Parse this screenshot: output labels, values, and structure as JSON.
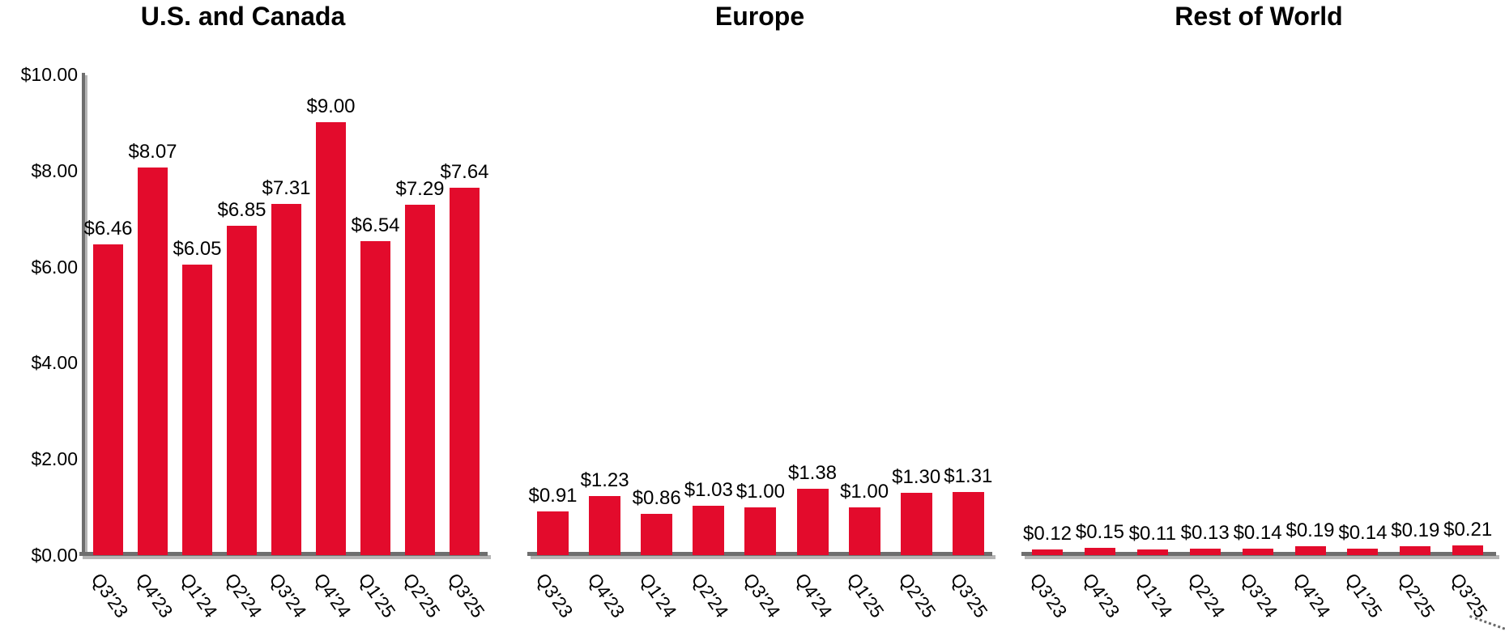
{
  "chart_data": [
    {
      "type": "bar",
      "title": "U.S. and Canada",
      "categories": [
        "Q3'23",
        "Q4'23",
        "Q1'24",
        "Q2'24",
        "Q3'24",
        "Q4'24",
        "Q1'25",
        "Q2'25",
        "Q3'25"
      ],
      "values": [
        6.46,
        8.07,
        6.05,
        6.85,
        7.31,
        9.0,
        6.54,
        7.29,
        7.64
      ],
      "data_labels": [
        "$6.46",
        "$8.07",
        "$6.05",
        "$6.85",
        "$7.31",
        "$9.00",
        "$6.54",
        "$7.29",
        "$7.64"
      ],
      "ylim": [
        0,
        10
      ],
      "y_axis_visible": true,
      "grid": false,
      "legend": "none"
    },
    {
      "type": "bar",
      "title": "Europe",
      "categories": [
        "Q3'23",
        "Q4'23",
        "Q1'24",
        "Q2'24",
        "Q3'24",
        "Q4'24",
        "Q1'25",
        "Q2'25",
        "Q3'25"
      ],
      "values": [
        0.91,
        1.23,
        0.86,
        1.03,
        1.0,
        1.38,
        1.0,
        1.3,
        1.31
      ],
      "data_labels": [
        "$0.91",
        "$1.23",
        "$0.86",
        "$1.03",
        "$1.00",
        "$1.38",
        "$1.00",
        "$1.30",
        "$1.31"
      ],
      "ylim": [
        0,
        10
      ],
      "y_axis_visible": false,
      "grid": false,
      "legend": "none"
    },
    {
      "type": "bar",
      "title": "Rest of World",
      "categories": [
        "Q3'23",
        "Q4'23",
        "Q1'24",
        "Q2'24",
        "Q3'24",
        "Q4'24",
        "Q1'25",
        "Q2'25",
        "Q3'25"
      ],
      "values": [
        0.12,
        0.15,
        0.11,
        0.13,
        0.14,
        0.19,
        0.14,
        0.19,
        0.21
      ],
      "data_labels": [
        "$0.12",
        "$0.15",
        "$0.11",
        "$0.13",
        "$0.14",
        "$0.19",
        "$0.14",
        "$0.19",
        "$0.21"
      ],
      "ylim": [
        0,
        10
      ],
      "y_axis_visible": false,
      "grid": false,
      "legend": "none"
    }
  ],
  "y_axis": {
    "tick_labels": [
      "$10.00",
      "$8.00",
      "$6.00",
      "$4.00",
      "$2.00",
      "$0.00"
    ],
    "tick_values": [
      10,
      8,
      6,
      4,
      2,
      0
    ]
  },
  "colors": {
    "bar": "#e30b2c",
    "axis_line": "#6e6e6e",
    "axis_shadow": "#b5b5b5",
    "text": "#000000",
    "background": "#ffffff"
  }
}
